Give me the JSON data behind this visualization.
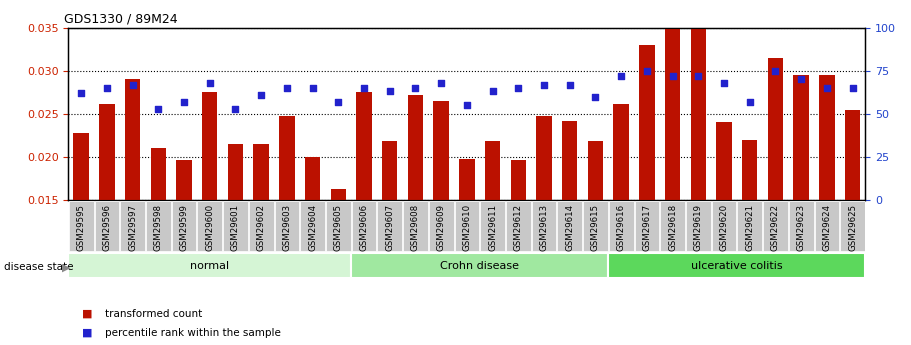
{
  "title": "GDS1330 / 89M24",
  "categories": [
    "GSM29595",
    "GSM29596",
    "GSM29597",
    "GSM29598",
    "GSM29599",
    "GSM29600",
    "GSM29601",
    "GSM29602",
    "GSM29603",
    "GSM29604",
    "GSM29605",
    "GSM29606",
    "GSM29607",
    "GSM29608",
    "GSM29609",
    "GSM29610",
    "GSM29611",
    "GSM29612",
    "GSM29613",
    "GSM29614",
    "GSM29615",
    "GSM29616",
    "GSM29617",
    "GSM29618",
    "GSM29619",
    "GSM29620",
    "GSM29621",
    "GSM29622",
    "GSM29623",
    "GSM29624",
    "GSM29625"
  ],
  "red_values": [
    0.0228,
    0.0262,
    0.029,
    0.021,
    0.0197,
    0.0275,
    0.0215,
    0.0215,
    0.0247,
    0.02,
    0.0163,
    0.0275,
    0.0218,
    0.0272,
    0.0265,
    0.0198,
    0.0218,
    0.0197,
    0.0247,
    0.0242,
    0.0218,
    0.0262,
    0.033,
    0.0348,
    0.0348,
    0.024,
    0.022,
    0.0315,
    0.0295,
    0.0295,
    0.0255
  ],
  "blue_values": [
    62,
    65,
    67,
    53,
    57,
    68,
    53,
    61,
    65,
    65,
    57,
    65,
    63,
    65,
    68,
    55,
    63,
    65,
    67,
    67,
    60,
    72,
    75,
    72,
    72,
    68,
    57,
    75,
    70,
    65,
    65
  ],
  "disease_groups": [
    {
      "label": "normal",
      "start": 0,
      "end": 10,
      "color": "#d5f5d5"
    },
    {
      "label": "Crohn disease",
      "start": 11,
      "end": 20,
      "color": "#a0e8a0"
    },
    {
      "label": "ulcerative colitis",
      "start": 21,
      "end": 30,
      "color": "#5cd85c"
    }
  ],
  "bar_color": "#bb1100",
  "dot_color": "#2222cc",
  "ylim_left": [
    0.015,
    0.035
  ],
  "ylim_right": [
    0,
    100
  ],
  "yticks_left": [
    0.015,
    0.02,
    0.025,
    0.03,
    0.035
  ],
  "yticks_right": [
    0,
    25,
    50,
    75,
    100
  ],
  "ylabel_left_color": "#cc2200",
  "ylabel_right_color": "#2244cc",
  "background_color": "#ffffff",
  "plot_bg_color": "#ffffff",
  "legend_red": "transformed count",
  "legend_blue": "percentile rank within the sample",
  "xtick_bg": "#c8c8c8"
}
